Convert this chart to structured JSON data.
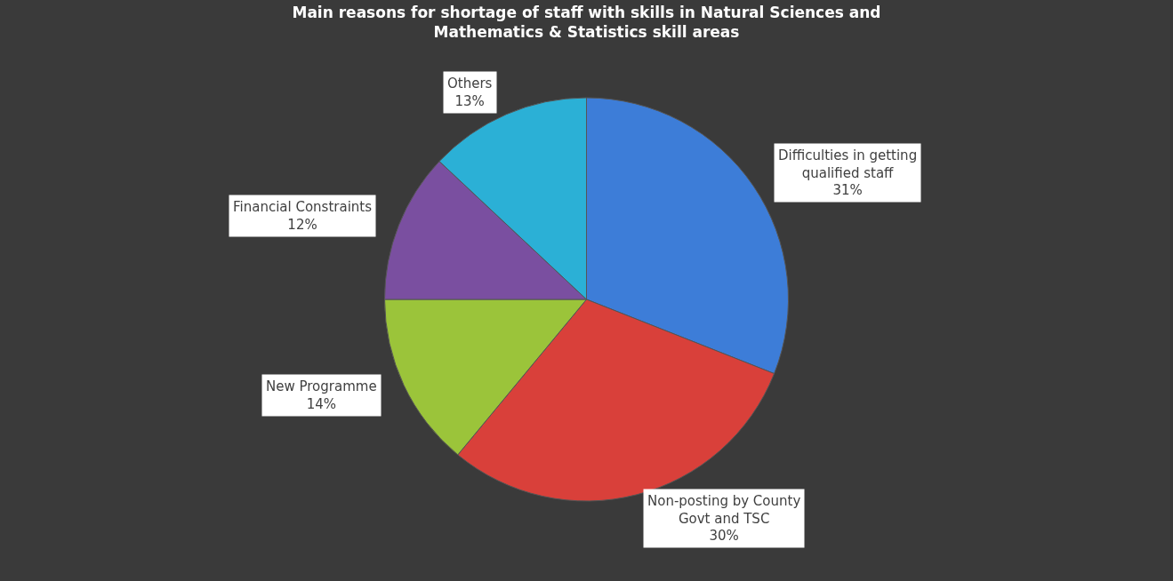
{
  "chart_data": {
    "type": "pie",
    "title": "Main reasons for shortage of staff with skills in Natural Sciences and Mathematics & Statistics skill areas",
    "categories": [
      "Difficulties in getting qualified staff",
      "Non-posting by County Govt and TSC",
      "New Programme",
      "Financial Constraints",
      "Others"
    ],
    "values": [
      31,
      30,
      14,
      12,
      13
    ],
    "value_labels": [
      "31%",
      "30%",
      "14%",
      "12%",
      "13%"
    ],
    "colors": [
      "#3d7dd8",
      "#d9403a",
      "#9bc43a",
      "#7a4fa0",
      "#2bb0d6"
    ],
    "legend": false
  }
}
